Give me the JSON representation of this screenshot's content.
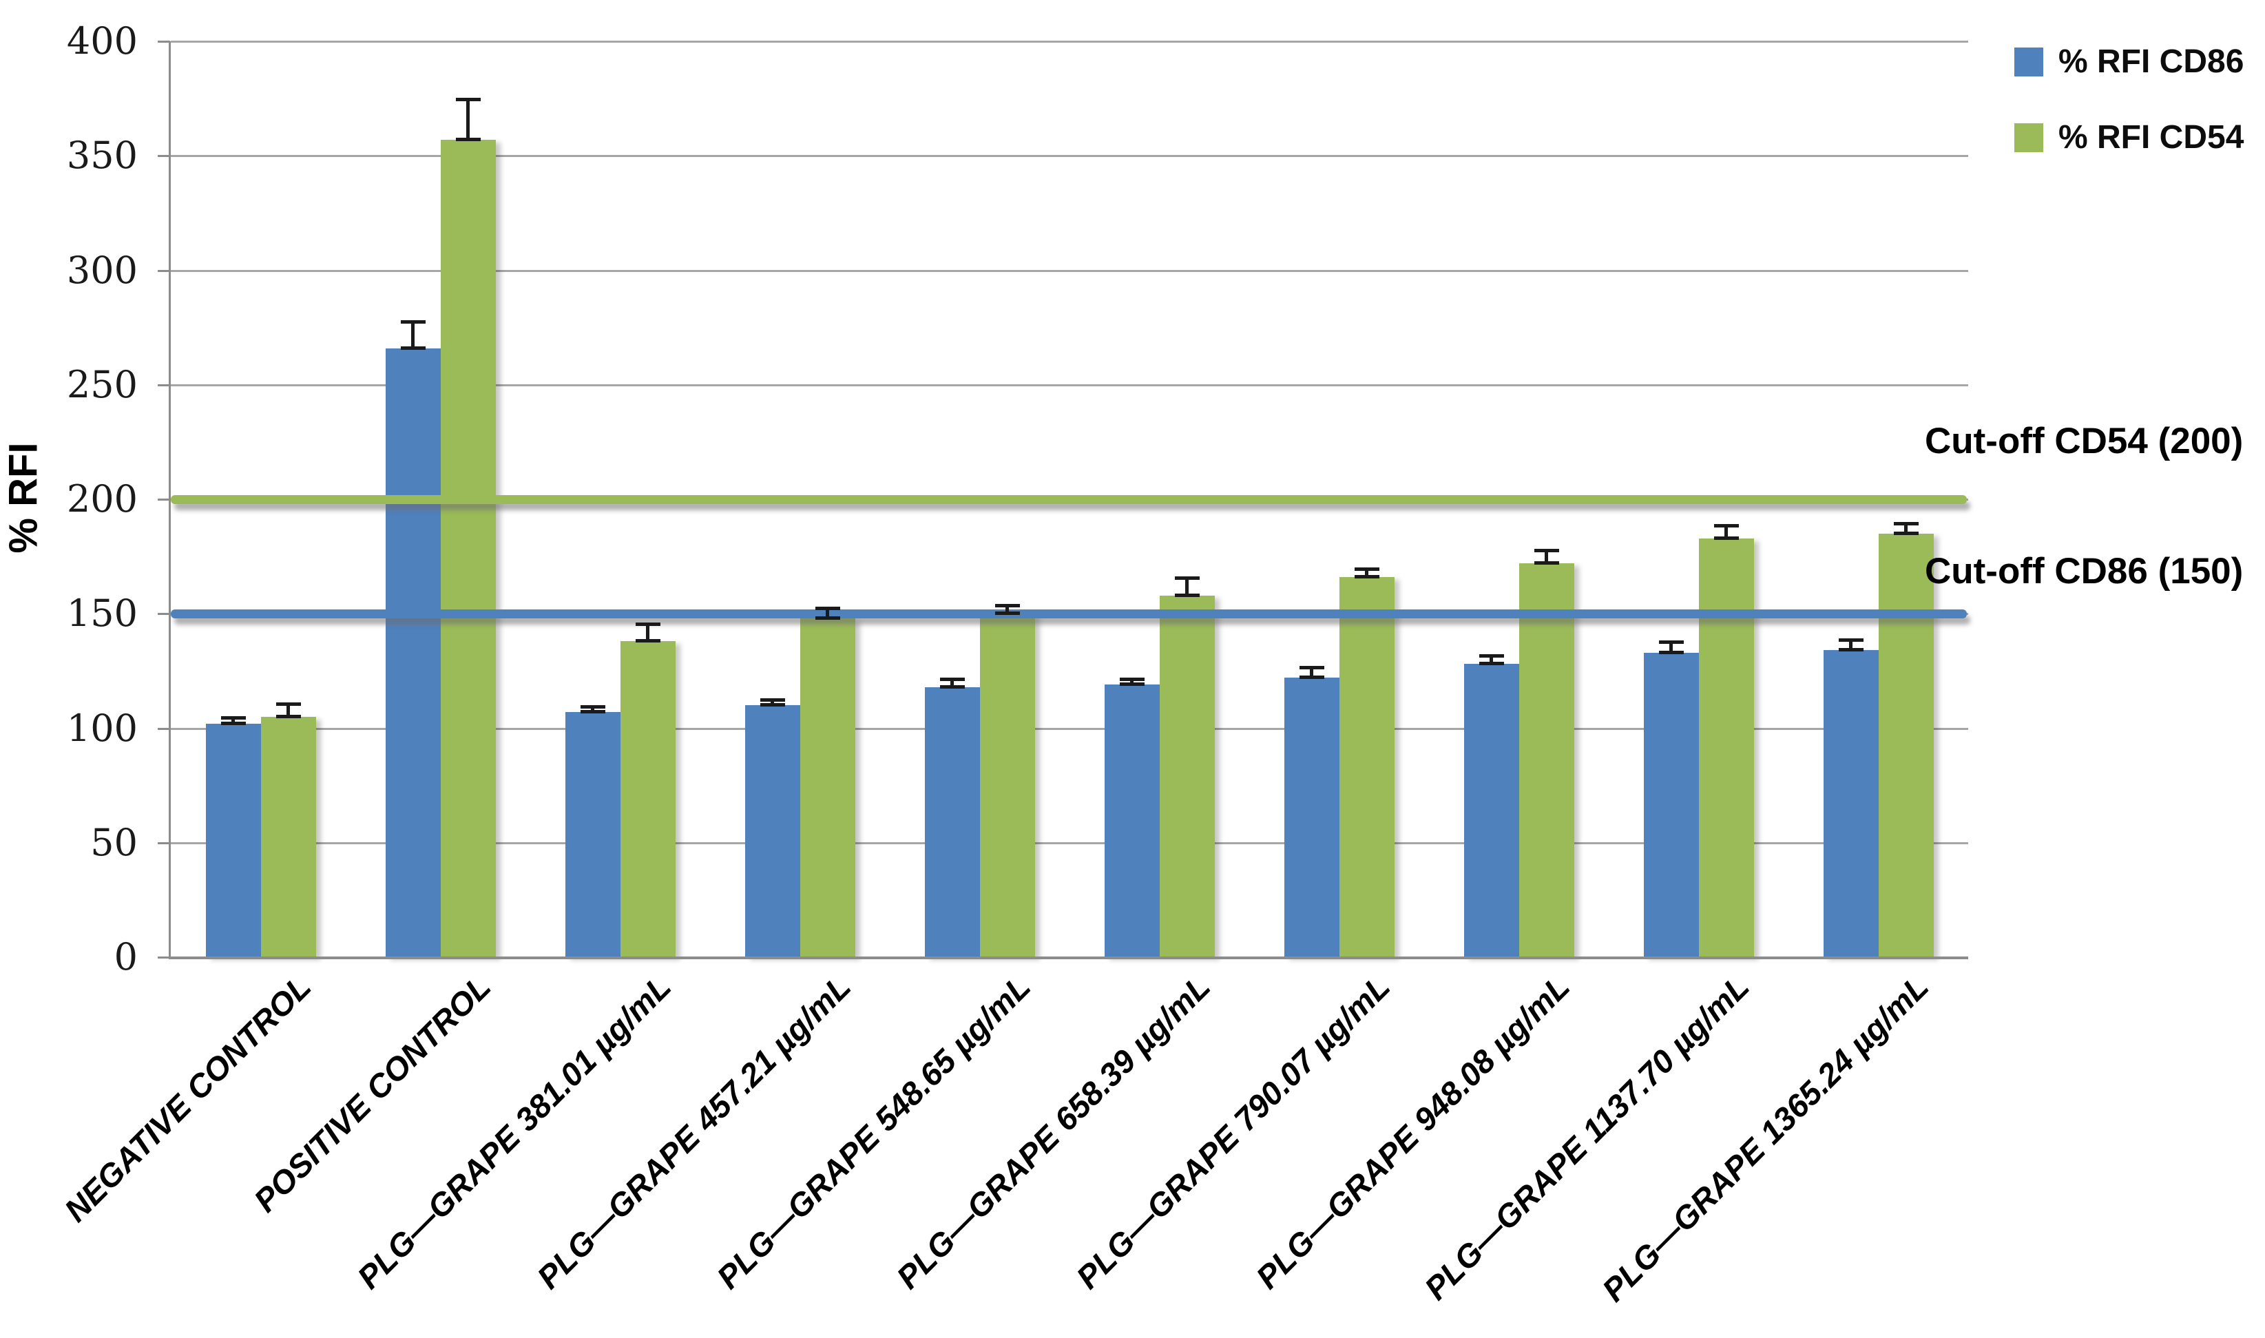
{
  "chart_data": {
    "type": "bar",
    "title": "",
    "xlabel": "",
    "ylabel": "% RFI",
    "ylim": [
      0,
      400
    ],
    "yticks": [
      0,
      50,
      100,
      150,
      200,
      250,
      300,
      350,
      400
    ],
    "grid": true,
    "legend_position": "top-right",
    "categories": [
      "NEGATIVE CONTROL",
      "POSITIVE CONTROL",
      "PLG—GRAPE 381.01 µg/mL",
      "PLG—GRAPE 457.21 µg/mL",
      "PLG—GRAPE 548.65 µg/mL",
      "PLG—GRAPE 658.39 µg/mL",
      "PLG—GRAPE 790.07 µg/mL",
      "PLG—GRAPE 948.08 µg/mL",
      "PLG—GRAPE 1137.70 µg/mL",
      "PLG—GRAPE 1365.24 µg/mL"
    ],
    "series": [
      {
        "name": "% RFI CD86",
        "color": "#4F81BD",
        "values": [
          102,
          266,
          107,
          110,
          118,
          119,
          122,
          128,
          133,
          134
        ],
        "errors_plus": [
          2,
          11,
          2,
          2,
          3,
          2,
          4,
          3,
          4,
          4
        ]
      },
      {
        "name": "% RFI CD54",
        "color": "#9BBB59",
        "values": [
          105,
          357,
          138,
          148,
          150,
          158,
          166,
          172,
          183,
          185
        ],
        "errors_plus": [
          5,
          17,
          7,
          4,
          3,
          7,
          3,
          5,
          5,
          4
        ]
      }
    ],
    "reference_lines": [
      {
        "label": "Cut-off CD54 (200)",
        "value": 200,
        "color": "#9BBB59"
      },
      {
        "label": "Cut-off CD86 (150)",
        "value": 150,
        "color": "#4F81BD"
      }
    ]
  },
  "colors": {
    "cd86_blue": "#4F81BD",
    "cd54_green": "#9BBB59",
    "gridline": "#A6A6A6",
    "axis": "#8C8C8C",
    "text": "#000000",
    "background": "#FFFFFF"
  }
}
